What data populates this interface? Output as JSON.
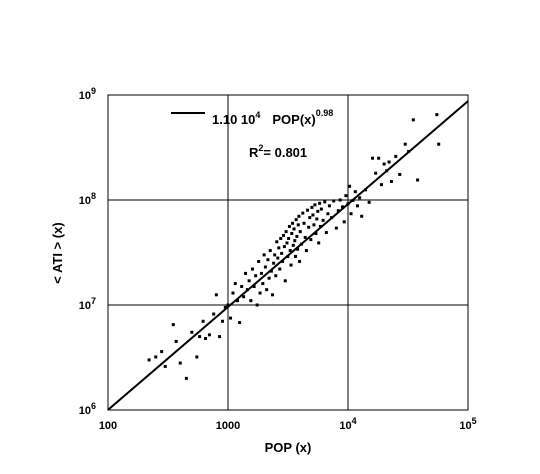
{
  "chart_data": {
    "type": "scatter",
    "x_scale": "log",
    "y_scale": "log",
    "xlim": [
      100,
      100000
    ],
    "ylim": [
      1000000,
      1000000000
    ],
    "grid": true,
    "xlabel": "POP (x)",
    "ylabel": "< ATI > (x)",
    "x_ticks": [
      {
        "base": "100",
        "exp": ""
      },
      {
        "base": "1000",
        "exp": ""
      },
      {
        "base": "10",
        "exp": "4"
      },
      {
        "base": "10",
        "exp": "5"
      }
    ],
    "y_ticks": [
      {
        "base": "10",
        "exp": "6"
      },
      {
        "base": "10",
        "exp": "7"
      },
      {
        "base": "10",
        "exp": "8"
      },
      {
        "base": "10",
        "exp": "9"
      }
    ],
    "fit": {
      "label": {
        "pre": "1.10 10",
        "exp1": "4",
        "mid": "POP(x)",
        "exp2": "0.98"
      },
      "coefficient": 11000,
      "exponent": 0.98
    },
    "r2": {
      "pre": "R",
      "exp": "2",
      "post": "= 0.801"
    },
    "legend_position": "top-left",
    "points": [
      [
        220,
        3000000.0
      ],
      [
        250,
        3200000.0
      ],
      [
        280,
        3600000.0
      ],
      [
        300,
        2600000.0
      ],
      [
        350,
        6500000.0
      ],
      [
        370,
        4500000.0
      ],
      [
        400,
        2800000.0
      ],
      [
        450,
        2000000.0
      ],
      [
        500,
        5500000.0
      ],
      [
        550,
        3200000.0
      ],
      [
        580,
        5000000.0
      ],
      [
        620,
        7000000.0
      ],
      [
        650,
        4800000.0
      ],
      [
        700,
        5200000.0
      ],
      [
        760,
        8200000.0
      ],
      [
        800,
        12500000.0
      ],
      [
        850,
        5000000.0
      ],
      [
        900,
        7000000.0
      ],
      [
        950,
        9500000.0
      ],
      [
        1000,
        10000000.0
      ],
      [
        1050,
        7500000.0
      ],
      [
        1100,
        13000000.0
      ],
      [
        1150,
        16000000.0
      ],
      [
        1200,
        11000000.0
      ],
      [
        1250,
        6800000.0
      ],
      [
        1300,
        15000000.0
      ],
      [
        1350,
        12000000.0
      ],
      [
        1400,
        20000000.0
      ],
      [
        1450,
        14000000.0
      ],
      [
        1500,
        17000000.0
      ],
      [
        1550,
        11000000.0
      ],
      [
        1600,
        22000000.0
      ],
      [
        1650,
        15000000.0
      ],
      [
        1700,
        19000000.0
      ],
      [
        1750,
        10000000.0
      ],
      [
        1800,
        26000000.0
      ],
      [
        1850,
        13000000.0
      ],
      [
        1900,
        20000000.0
      ],
      [
        1950,
        16000000.0
      ],
      [
        2000,
        30000000.0
      ],
      [
        2050,
        23000000.0
      ],
      [
        2100,
        14000000.0
      ],
      [
        2150,
        27000000.0
      ],
      [
        2200,
        18000000.0
      ],
      [
        2250,
        33000000.0
      ],
      [
        2300,
        21000000.0
      ],
      [
        2350,
        12500000.0
      ],
      [
        2400,
        25000000.0
      ],
      [
        2450,
        30000000.0
      ],
      [
        2500,
        19000000.0
      ],
      [
        2550,
        40000000.0
      ],
      [
        2600,
        28000000.0
      ],
      [
        2650,
        35000000.0
      ],
      [
        2700,
        22000000.0
      ],
      [
        2750,
        43000000.0
      ],
      [
        2800,
        31000000.0
      ],
      [
        2850,
        26000000.0
      ],
      [
        2900,
        46000000.0
      ],
      [
        2950,
        36000000.0
      ],
      [
        3000,
        17000000.0
      ],
      [
        3050,
        50000000.0
      ],
      [
        3100,
        39000000.0
      ],
      [
        3150,
        29000000.0
      ],
      [
        3200,
        43000000.0
      ],
      [
        3250,
        56000000.0
      ],
      [
        3300,
        33000000.0
      ],
      [
        3350,
        24000000.0
      ],
      [
        3400,
        48000000.0
      ],
      [
        3450,
        60000000.0
      ],
      [
        3500,
        37000000.0
      ],
      [
        3550,
        53000000.0
      ],
      [
        3600,
        41000000.0
      ],
      [
        3650,
        29000000.0
      ],
      [
        3700,
        65000000.0
      ],
      [
        3750,
        45000000.0
      ],
      [
        3800,
        34000000.0
      ],
      [
        3850,
        58000000.0
      ],
      [
        3900,
        70000000.0
      ],
      [
        3950,
        26000000.0
      ],
      [
        4000,
        50000000.0
      ],
      [
        4100,
        38000000.0
      ],
      [
        4200,
        75000000.0
      ],
      [
        4300,
        60000000.0
      ],
      [
        4400,
        44000000.0
      ],
      [
        4500,
        33000000.0
      ],
      [
        4600,
        80000000.0
      ],
      [
        4700,
        55000000.0
      ],
      [
        4800,
        68000000.0
      ],
      [
        4900,
        42000000.0
      ],
      [
        5000,
        85000000.0
      ],
      [
        5100,
        72000000.0
      ],
      [
        5200,
        58000000.0
      ],
      [
        5300,
        90000000.0
      ],
      [
        5400,
        48000000.0
      ],
      [
        5500,
        66000000.0
      ],
      [
        5600,
        78000000.0
      ],
      [
        5700,
        39000000.0
      ],
      [
        5800,
        93000000.0
      ],
      [
        5900,
        56000000.0
      ],
      [
        6000,
        82000000.0
      ],
      [
        6200,
        64000000.0
      ],
      [
        6400,
        96000000.0
      ],
      [
        6600,
        49000000.0
      ],
      [
        6800,
        74000000.0
      ],
      [
        7000,
        88000000.0
      ],
      [
        7300,
        68000000.0
      ],
      [
        7600,
        98000000.0
      ],
      [
        8000,
        54000000.0
      ],
      [
        8300,
        79000000.0
      ],
      [
        8600,
        100000000.0
      ],
      [
        9000,
        86000000.0
      ],
      [
        9300,
        62000000.0
      ],
      [
        9600,
        110000000.0
      ],
      [
        10000,
        92000000.0
      ],
      [
        10300,
        135000000.0
      ],
      [
        10600,
        74000000.0
      ],
      [
        11000,
        99000000.0
      ],
      [
        11500,
        120000000.0
      ],
      [
        12000,
        88000000.0
      ],
      [
        12500,
        105000000.0
      ],
      [
        13000,
        70000000.0
      ],
      [
        14000,
        125000000.0
      ],
      [
        15000,
        95000000.0
      ],
      [
        16000,
        250000000.0
      ],
      [
        17000,
        180000000.0
      ],
      [
        18000,
        250000000.0
      ],
      [
        19000,
        140000000.0
      ],
      [
        20000,
        220000000.0
      ],
      [
        21000,
        190000000.0
      ],
      [
        22000,
        230000000.0
      ],
      [
        23000,
        150000000.0
      ],
      [
        25000,
        260000000.0
      ],
      [
        27000,
        175000000.0
      ],
      [
        30000,
        340000000.0
      ],
      [
        32000,
        290000000.0
      ],
      [
        35000,
        580000000.0
      ],
      [
        38000,
        155000000.0
      ],
      [
        55000,
        650000000.0
      ],
      [
        57000,
        340000000.0
      ]
    ]
  }
}
